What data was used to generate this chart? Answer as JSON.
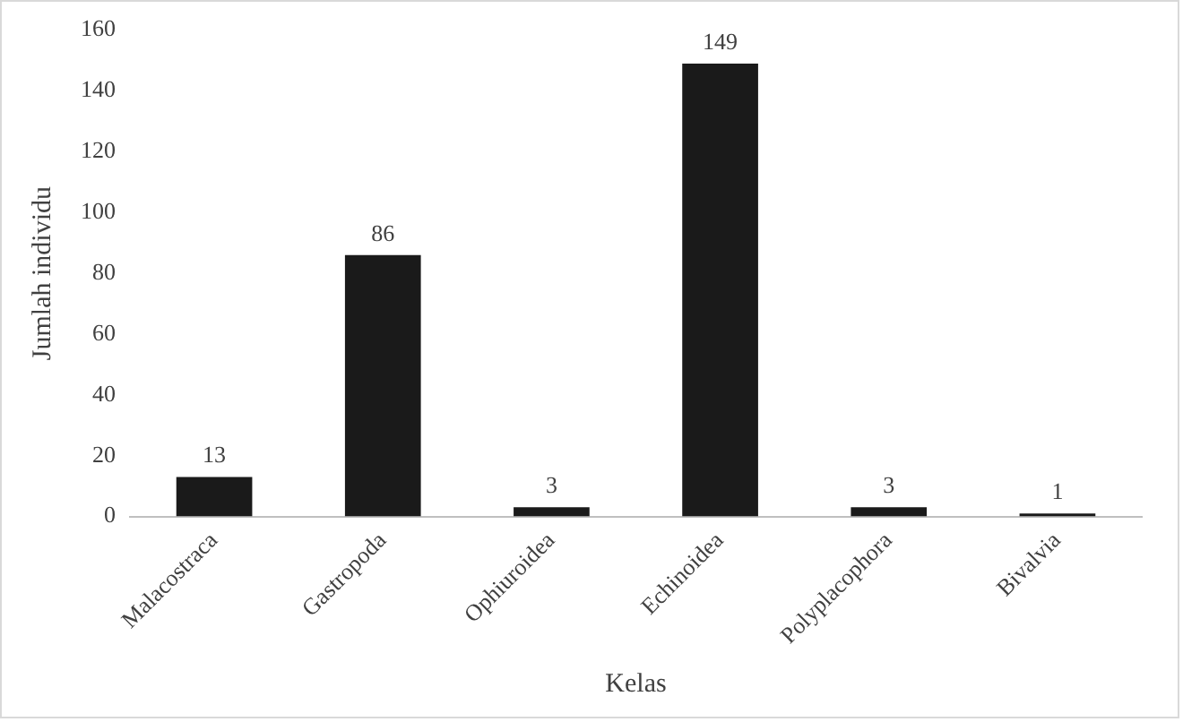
{
  "chart_data": {
    "type": "bar",
    "xlabel": "Kelas",
    "ylabel": "Jumlah individu",
    "categories": [
      "Malacostraca",
      "Gastropoda",
      "Ophiuroidea",
      "Echinoidea",
      "Polyplacophora",
      "Bivalvia"
    ],
    "values": [
      13,
      86,
      3,
      149,
      3,
      1
    ],
    "color": "#1a1a1a",
    "ylim": [
      0,
      160
    ],
    "yticks": [
      0,
      20,
      40,
      60,
      80,
      100,
      120,
      140,
      160
    ],
    "grid": false,
    "data_labels": true,
    "legend": false
  }
}
